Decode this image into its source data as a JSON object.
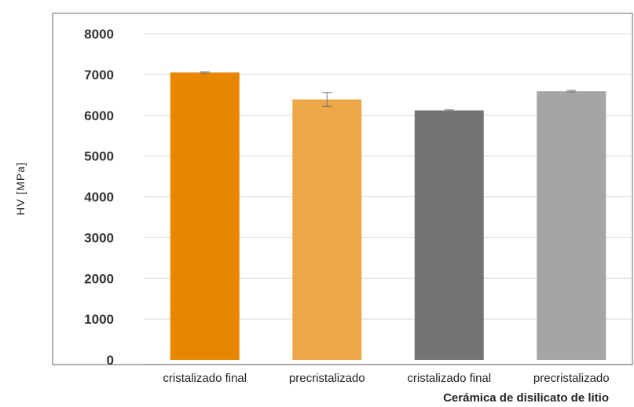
{
  "chart_data": {
    "type": "bar",
    "title": "",
    "xlabel": "Cerámica de disilicato de litio",
    "ylabel": "HV [MPa]",
    "ylim": [
      0,
      8000
    ],
    "yticks": [
      0,
      1000,
      2000,
      3000,
      4000,
      5000,
      6000,
      7000,
      8000
    ],
    "grid": true,
    "legend": "none",
    "categories": [
      "cristalizado final",
      "precristalizado",
      "cristalizado final",
      "precristalizado"
    ],
    "values": [
      7050,
      6390,
      6120,
      6590
    ],
    "error": [
      15,
      170,
      15,
      20
    ],
    "colors": [
      "#E88600",
      "#EDA749",
      "#737373",
      "#A5A5A5"
    ]
  }
}
